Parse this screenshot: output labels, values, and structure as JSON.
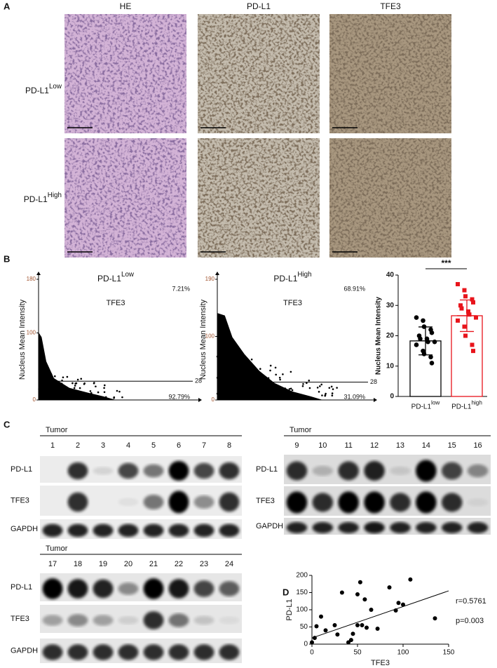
{
  "panel_labels": [
    "A",
    "B",
    "C",
    "D"
  ],
  "panel_a": {
    "columns": [
      "HE",
      "PD-L1",
      "TFE3"
    ],
    "rows": [
      {
        "label": "PD-L1",
        "sup": "Low"
      },
      {
        "label": "PD-L1",
        "sup": "High"
      }
    ]
  },
  "chart_data": [
    {
      "type": "density",
      "title": "PD-L1",
      "title_sup": "Low",
      "ylabel": "Nucleus Mean Intensity",
      "inner_label": "TFE3",
      "ylim": [
        0,
        180
      ],
      "yticks": [
        0,
        100,
        180
      ],
      "gate": 28,
      "quadrants": {
        "values": [
          7.21,
          92.79
        ],
        "value_labels": [
          "7.21%",
          "92.79%"
        ]
      }
    },
    {
      "type": "density",
      "title": "PD-L1",
      "title_sup": "High",
      "ylabel": "Nucleus Mean Intensity",
      "inner_label": "TFE3",
      "ylim": [
        0,
        190
      ],
      "yticks": [
        0,
        100,
        190
      ],
      "gate": 28,
      "quadrants": {
        "values": [
          68.91,
          31.09
        ],
        "value_labels": [
          "68.91%",
          "31.09%"
        ]
      }
    },
    {
      "type": "bar",
      "ylabel": "Nucleus Mean Intensity",
      "categories": [
        "PD-L1",
        "PD-L1"
      ],
      "category_sups": [
        "low",
        "high"
      ],
      "values": [
        18.3,
        26.6
      ],
      "errors": [
        4.6,
        5.2
      ],
      "colors": [
        "#000000",
        "#e8141b"
      ],
      "points": [
        [
          26,
          25,
          23,
          22,
          21,
          20,
          19,
          19,
          18,
          18,
          17,
          15,
          14,
          13,
          11
        ],
        [
          37,
          35,
          33,
          32,
          31,
          30,
          29,
          28,
          27,
          26,
          25,
          23,
          20,
          17,
          15
        ]
      ],
      "ylim": [
        0,
        40
      ],
      "yticks": [
        0,
        10,
        20,
        30,
        40
      ],
      "significance": "***"
    },
    {
      "type": "scatter",
      "xlabel": "TFE3",
      "ylabel": "PD-L1",
      "x": [
        0,
        3,
        5,
        10,
        15,
        25,
        28,
        33,
        40,
        43,
        45,
        50,
        50,
        53,
        55,
        58,
        60,
        65,
        72,
        85,
        92,
        95,
        100,
        108,
        135
      ],
      "y": [
        5,
        18,
        52,
        80,
        40,
        55,
        28,
        150,
        5,
        12,
        30,
        55,
        145,
        180,
        55,
        130,
        48,
        100,
        45,
        165,
        98,
        120,
        115,
        188,
        75
      ],
      "xlim": [
        0,
        150
      ],
      "ylim": [
        0,
        200
      ],
      "xticks": [
        0,
        50,
        100,
        150
      ],
      "yticks": [
        0,
        50,
        100,
        150,
        200
      ],
      "fit": {
        "x": [
          0,
          150
        ],
        "y": [
          18,
          155
        ]
      },
      "annotations": [
        "r=0.5761",
        "p=0.003"
      ]
    }
  ],
  "panel_c": {
    "blots": [
      {
        "title": "Tumor",
        "lanes": [
          "1",
          "2",
          "3",
          "4",
          "5",
          "6",
          "7",
          "8"
        ],
        "rows": [
          "PD-L1",
          "TFE3",
          "GAPDH"
        ]
      },
      {
        "title": "Tumor",
        "lanes": [
          "9",
          "10",
          "11",
          "12",
          "13",
          "14",
          "15",
          "16"
        ],
        "rows": [
          "PD-L1",
          "TFE3",
          "GAPDH"
        ]
      },
      {
        "title": "Tumor",
        "lanes": [
          "17",
          "18",
          "19",
          "20",
          "21",
          "22",
          "23",
          "24"
        ],
        "rows": [
          "PD-L1",
          "TFE3",
          "GAPDH"
        ]
      }
    ]
  }
}
